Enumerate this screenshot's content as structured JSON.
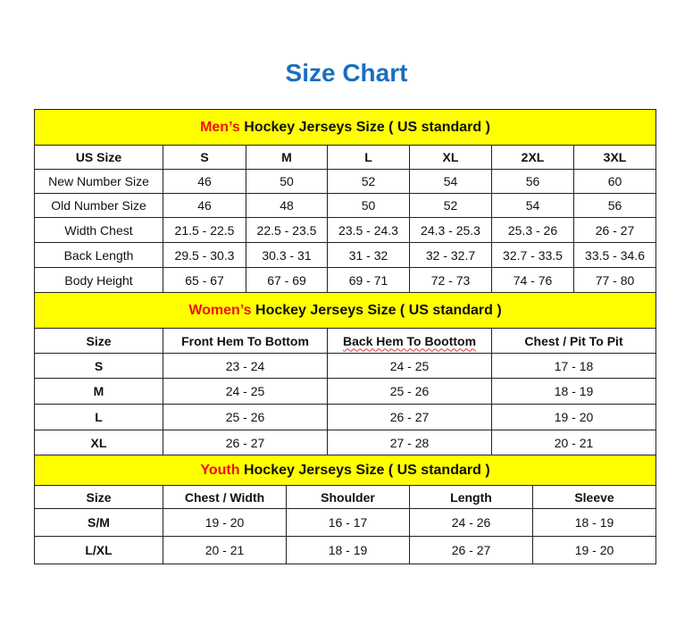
{
  "title": "Size Chart",
  "colors": {
    "title": "#1a6fbf",
    "section_bg": "#ffff00",
    "accent": "#ee1111"
  },
  "men": {
    "heading_accent": "Men’s",
    "heading_rest": " Hockey Jerseys Size ( US standard )",
    "headers": [
      "US Size",
      "S",
      "M",
      "L",
      "XL",
      "2XL",
      "3XL"
    ],
    "rows": [
      [
        "New Number Size",
        "46",
        "50",
        "52",
        "54",
        "56",
        "60"
      ],
      [
        "Old Number Size",
        "46",
        "48",
        "50",
        "52",
        "54",
        "56"
      ],
      [
        "Width Chest",
        "21.5 - 22.5",
        "22.5 - 23.5",
        "23.5 - 24.3",
        "24.3 - 25.3",
        "25.3 - 26",
        "26 - 27"
      ],
      [
        "Back Length",
        "29.5 - 30.3",
        "30.3 - 31",
        "31 - 32",
        "32 - 32.7",
        "32.7 - 33.5",
        "33.5 - 34.6"
      ],
      [
        "Body Height",
        "65 - 67",
        "67 - 69",
        "69 - 71",
        "72 - 73",
        "74 - 76",
        "77 - 80"
      ]
    ]
  },
  "women": {
    "heading_accent": "Women’s",
    "heading_rest": " Hockey Jerseys Size ( US standard )",
    "headers": [
      "Size",
      "Front Hem To Bottom",
      "Back Hem To Boottom",
      "Chest / Pit To Pit"
    ],
    "rows": [
      [
        "S",
        "23 - 24",
        "24 - 25",
        "17 - 18"
      ],
      [
        "M",
        "24 - 25",
        "25 - 26",
        "18 - 19"
      ],
      [
        "L",
        "25 - 26",
        "26 - 27",
        "19 - 20"
      ],
      [
        "XL",
        "26 - 27",
        "27 - 28",
        "20 - 21"
      ]
    ]
  },
  "youth": {
    "heading_accent": "Youth",
    "heading_rest": " Hockey Jerseys Size ( US standard )",
    "headers": [
      "Size",
      "Chest / Width",
      "Shoulder",
      "Length",
      "Sleeve"
    ],
    "rows": [
      [
        "S/M",
        "19 - 20",
        "16 - 17",
        "24 - 26",
        "18 - 19"
      ],
      [
        "L/XL",
        "20 - 21",
        "18 - 19",
        "26 - 27",
        "19 - 20"
      ]
    ]
  }
}
